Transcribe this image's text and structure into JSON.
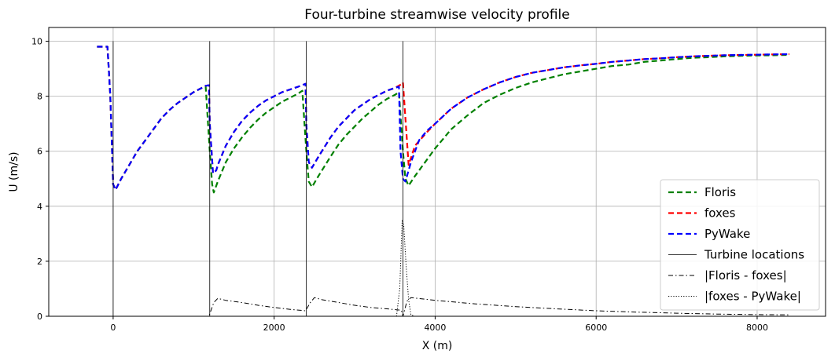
{
  "chart_data": {
    "type": "line",
    "title": "Four-turbine streamwise velocity profile",
    "xlabel": "X (m)",
    "ylabel": "U (m/s)",
    "xlim": [
      -800,
      8850
    ],
    "ylim": [
      0,
      10.5
    ],
    "xticks": [
      0,
      2000,
      4000,
      6000,
      8000
    ],
    "yticks": [
      0,
      2,
      4,
      6,
      8,
      10
    ],
    "grid": true,
    "legend_position": "bottom-right",
    "turbine_x": [
      0,
      1200,
      2400,
      3600
    ],
    "series": [
      {
        "name": "Floris",
        "color": "#008000",
        "style": "dashed",
        "points": [
          [
            -200,
            9.8
          ],
          [
            -70,
            9.8
          ],
          [
            -35,
            8.0
          ],
          [
            0,
            4.8
          ],
          [
            30,
            4.6
          ],
          [
            100,
            5.0
          ],
          [
            200,
            5.5
          ],
          [
            300,
            6.0
          ],
          [
            400,
            6.4
          ],
          [
            500,
            6.8
          ],
          [
            600,
            7.2
          ],
          [
            700,
            7.5
          ],
          [
            800,
            7.75
          ],
          [
            900,
            7.95
          ],
          [
            1000,
            8.15
          ],
          [
            1100,
            8.3
          ],
          [
            1150,
            8.35
          ],
          [
            1200,
            6.0
          ],
          [
            1230,
            4.8
          ],
          [
            1250,
            4.5
          ],
          [
            1300,
            4.9
          ],
          [
            1400,
            5.6
          ],
          [
            1500,
            6.1
          ],
          [
            1600,
            6.5
          ],
          [
            1700,
            6.85
          ],
          [
            1800,
            7.15
          ],
          [
            1900,
            7.4
          ],
          [
            2000,
            7.6
          ],
          [
            2100,
            7.8
          ],
          [
            2200,
            7.95
          ],
          [
            2300,
            8.1
          ],
          [
            2350,
            8.2
          ],
          [
            2400,
            6.0
          ],
          [
            2430,
            4.9
          ],
          [
            2470,
            4.7
          ],
          [
            2550,
            5.1
          ],
          [
            2700,
            5.8
          ],
          [
            2800,
            6.25
          ],
          [
            2900,
            6.6
          ],
          [
            3000,
            6.9
          ],
          [
            3100,
            7.2
          ],
          [
            3200,
            7.45
          ],
          [
            3300,
            7.7
          ],
          [
            3400,
            7.9
          ],
          [
            3500,
            8.05
          ],
          [
            3550,
            8.15
          ],
          [
            3600,
            6.0
          ],
          [
            3630,
            5.0
          ],
          [
            3670,
            4.75
          ],
          [
            3750,
            5.1
          ],
          [
            3900,
            5.7
          ],
          [
            4000,
            6.1
          ],
          [
            4200,
            6.8
          ],
          [
            4400,
            7.3
          ],
          [
            4600,
            7.75
          ],
          [
            4800,
            8.05
          ],
          [
            5000,
            8.3
          ],
          [
            5200,
            8.5
          ],
          [
            5400,
            8.65
          ],
          [
            5600,
            8.8
          ],
          [
            5800,
            8.9
          ],
          [
            6000,
            9.0
          ],
          [
            6200,
            9.1
          ],
          [
            6400,
            9.15
          ],
          [
            6600,
            9.25
          ],
          [
            6800,
            9.3
          ],
          [
            7000,
            9.35
          ],
          [
            7200,
            9.4
          ],
          [
            7400,
            9.42
          ],
          [
            7600,
            9.45
          ],
          [
            7800,
            9.47
          ],
          [
            8000,
            9.48
          ],
          [
            8200,
            9.49
          ],
          [
            8400,
            9.5
          ]
        ]
      },
      {
        "name": "foxes",
        "color": "#ff0000",
        "style": "dashed",
        "points": [
          [
            -200,
            9.8
          ],
          [
            -70,
            9.8
          ],
          [
            -35,
            8.0
          ],
          [
            0,
            4.8
          ],
          [
            30,
            4.6
          ],
          [
            100,
            5.0
          ],
          [
            200,
            5.5
          ],
          [
            300,
            6.0
          ],
          [
            400,
            6.4
          ],
          [
            500,
            6.8
          ],
          [
            600,
            7.2
          ],
          [
            700,
            7.5
          ],
          [
            800,
            7.75
          ],
          [
            900,
            7.95
          ],
          [
            1000,
            8.15
          ],
          [
            1100,
            8.3
          ],
          [
            1150,
            8.38
          ],
          [
            1190,
            8.4
          ],
          [
            1200,
            7.0
          ],
          [
            1240,
            5.2
          ],
          [
            1280,
            5.3
          ],
          [
            1300,
            5.5
          ],
          [
            1400,
            6.2
          ],
          [
            1500,
            6.7
          ],
          [
            1600,
            7.1
          ],
          [
            1700,
            7.4
          ],
          [
            1800,
            7.65
          ],
          [
            1900,
            7.85
          ],
          [
            2000,
            8.0
          ],
          [
            2100,
            8.15
          ],
          [
            2200,
            8.25
          ],
          [
            2300,
            8.35
          ],
          [
            2390,
            8.45
          ],
          [
            2400,
            7.0
          ],
          [
            2430,
            5.6
          ],
          [
            2470,
            5.4
          ],
          [
            2550,
            5.8
          ],
          [
            2700,
            6.5
          ],
          [
            2800,
            6.9
          ],
          [
            2900,
            7.2
          ],
          [
            3000,
            7.5
          ],
          [
            3100,
            7.7
          ],
          [
            3200,
            7.9
          ],
          [
            3300,
            8.05
          ],
          [
            3400,
            8.2
          ],
          [
            3500,
            8.3
          ],
          [
            3590,
            8.45
          ],
          [
            3600,
            8.5
          ],
          [
            3670,
            5.5
          ],
          [
            3750,
            6.2
          ],
          [
            3900,
            6.7
          ],
          [
            4000,
            7.0
          ],
          [
            4200,
            7.55
          ],
          [
            4400,
            7.95
          ],
          [
            4600,
            8.25
          ],
          [
            4800,
            8.5
          ],
          [
            5000,
            8.7
          ],
          [
            5200,
            8.85
          ],
          [
            5400,
            8.95
          ],
          [
            5600,
            9.05
          ],
          [
            5800,
            9.12
          ],
          [
            6000,
            9.18
          ],
          [
            6200,
            9.25
          ],
          [
            6400,
            9.3
          ],
          [
            6600,
            9.35
          ],
          [
            6800,
            9.38
          ],
          [
            7000,
            9.42
          ],
          [
            7200,
            9.45
          ],
          [
            7400,
            9.47
          ],
          [
            7600,
            9.49
          ],
          [
            7800,
            9.5
          ],
          [
            8000,
            9.51
          ],
          [
            8200,
            9.52
          ],
          [
            8400,
            9.53
          ]
        ]
      },
      {
        "name": "PyWake",
        "color": "#0000ff",
        "style": "dashed",
        "points": [
          [
            -200,
            9.8
          ],
          [
            -70,
            9.8
          ],
          [
            -35,
            8.0
          ],
          [
            0,
            4.8
          ],
          [
            30,
            4.6
          ],
          [
            100,
            5.0
          ],
          [
            200,
            5.5
          ],
          [
            300,
            6.0
          ],
          [
            400,
            6.4
          ],
          [
            500,
            6.8
          ],
          [
            600,
            7.2
          ],
          [
            700,
            7.5
          ],
          [
            800,
            7.75
          ],
          [
            900,
            7.95
          ],
          [
            1000,
            8.15
          ],
          [
            1100,
            8.3
          ],
          [
            1150,
            8.38
          ],
          [
            1190,
            8.4
          ],
          [
            1200,
            7.0
          ],
          [
            1240,
            5.2
          ],
          [
            1280,
            5.3
          ],
          [
            1300,
            5.5
          ],
          [
            1400,
            6.2
          ],
          [
            1500,
            6.7
          ],
          [
            1600,
            7.1
          ],
          [
            1700,
            7.4
          ],
          [
            1800,
            7.65
          ],
          [
            1900,
            7.85
          ],
          [
            2000,
            8.0
          ],
          [
            2100,
            8.15
          ],
          [
            2200,
            8.25
          ],
          [
            2300,
            8.35
          ],
          [
            2390,
            8.45
          ],
          [
            2400,
            7.0
          ],
          [
            2430,
            5.6
          ],
          [
            2470,
            5.4
          ],
          [
            2550,
            5.8
          ],
          [
            2700,
            6.5
          ],
          [
            2800,
            6.9
          ],
          [
            2900,
            7.2
          ],
          [
            3000,
            7.5
          ],
          [
            3100,
            7.7
          ],
          [
            3200,
            7.9
          ],
          [
            3300,
            8.05
          ],
          [
            3400,
            8.2
          ],
          [
            3500,
            8.3
          ],
          [
            3550,
            8.35
          ],
          [
            3570,
            6.0
          ],
          [
            3600,
            5.0
          ],
          [
            3630,
            4.9
          ],
          [
            3700,
            5.6
          ],
          [
            3800,
            6.4
          ],
          [
            3900,
            6.75
          ],
          [
            4000,
            7.0
          ],
          [
            4200,
            7.55
          ],
          [
            4400,
            7.95
          ],
          [
            4600,
            8.25
          ],
          [
            4800,
            8.5
          ],
          [
            5000,
            8.7
          ],
          [
            5200,
            8.85
          ],
          [
            5400,
            8.95
          ],
          [
            5600,
            9.05
          ],
          [
            5800,
            9.12
          ],
          [
            6000,
            9.18
          ],
          [
            6200,
            9.25
          ],
          [
            6400,
            9.3
          ],
          [
            6600,
            9.35
          ],
          [
            6800,
            9.38
          ],
          [
            7000,
            9.42
          ],
          [
            7200,
            9.45
          ],
          [
            7400,
            9.47
          ],
          [
            7600,
            9.49
          ],
          [
            7800,
            9.5
          ],
          [
            8000,
            9.51
          ],
          [
            8200,
            9.52
          ],
          [
            8400,
            9.53
          ]
        ]
      },
      {
        "name": "Turbine locations",
        "color": "#000000",
        "style": "solid",
        "points": []
      },
      {
        "name": "|Floris - foxes|",
        "color": "#000000",
        "style": "dashdot",
        "points": [
          [
            -200,
            0.0
          ],
          [
            1190,
            0.0
          ],
          [
            1250,
            0.5
          ],
          [
            1300,
            0.65
          ],
          [
            1400,
            0.58
          ],
          [
            1600,
            0.5
          ],
          [
            1800,
            0.4
          ],
          [
            2000,
            0.32
          ],
          [
            2200,
            0.25
          ],
          [
            2390,
            0.2
          ],
          [
            2450,
            0.5
          ],
          [
            2500,
            0.68
          ],
          [
            2600,
            0.6
          ],
          [
            2800,
            0.5
          ],
          [
            3000,
            0.4
          ],
          [
            3200,
            0.32
          ],
          [
            3400,
            0.27
          ],
          [
            3580,
            0.22
          ],
          [
            3600,
            0.0
          ],
          [
            3650,
            0.55
          ],
          [
            3700,
            0.68
          ],
          [
            4000,
            0.58
          ],
          [
            4500,
            0.45
          ],
          [
            5000,
            0.35
          ],
          [
            5500,
            0.27
          ],
          [
            6000,
            0.2
          ],
          [
            6500,
            0.15
          ],
          [
            7000,
            0.11
          ],
          [
            7500,
            0.08
          ],
          [
            8000,
            0.06
          ],
          [
            8400,
            0.05
          ]
        ]
      },
      {
        "name": "|foxes - PyWake|",
        "color": "#000000",
        "style": "dotted",
        "points": [
          [
            -200,
            0.0
          ],
          [
            3520,
            0.0
          ],
          [
            3560,
            1.0
          ],
          [
            3590,
            3.5
          ],
          [
            3610,
            3.3
          ],
          [
            3640,
            1.8
          ],
          [
            3670,
            0.6
          ],
          [
            3700,
            0.05
          ],
          [
            3750,
            0.0
          ],
          [
            8400,
            0.0
          ]
        ]
      }
    ]
  }
}
